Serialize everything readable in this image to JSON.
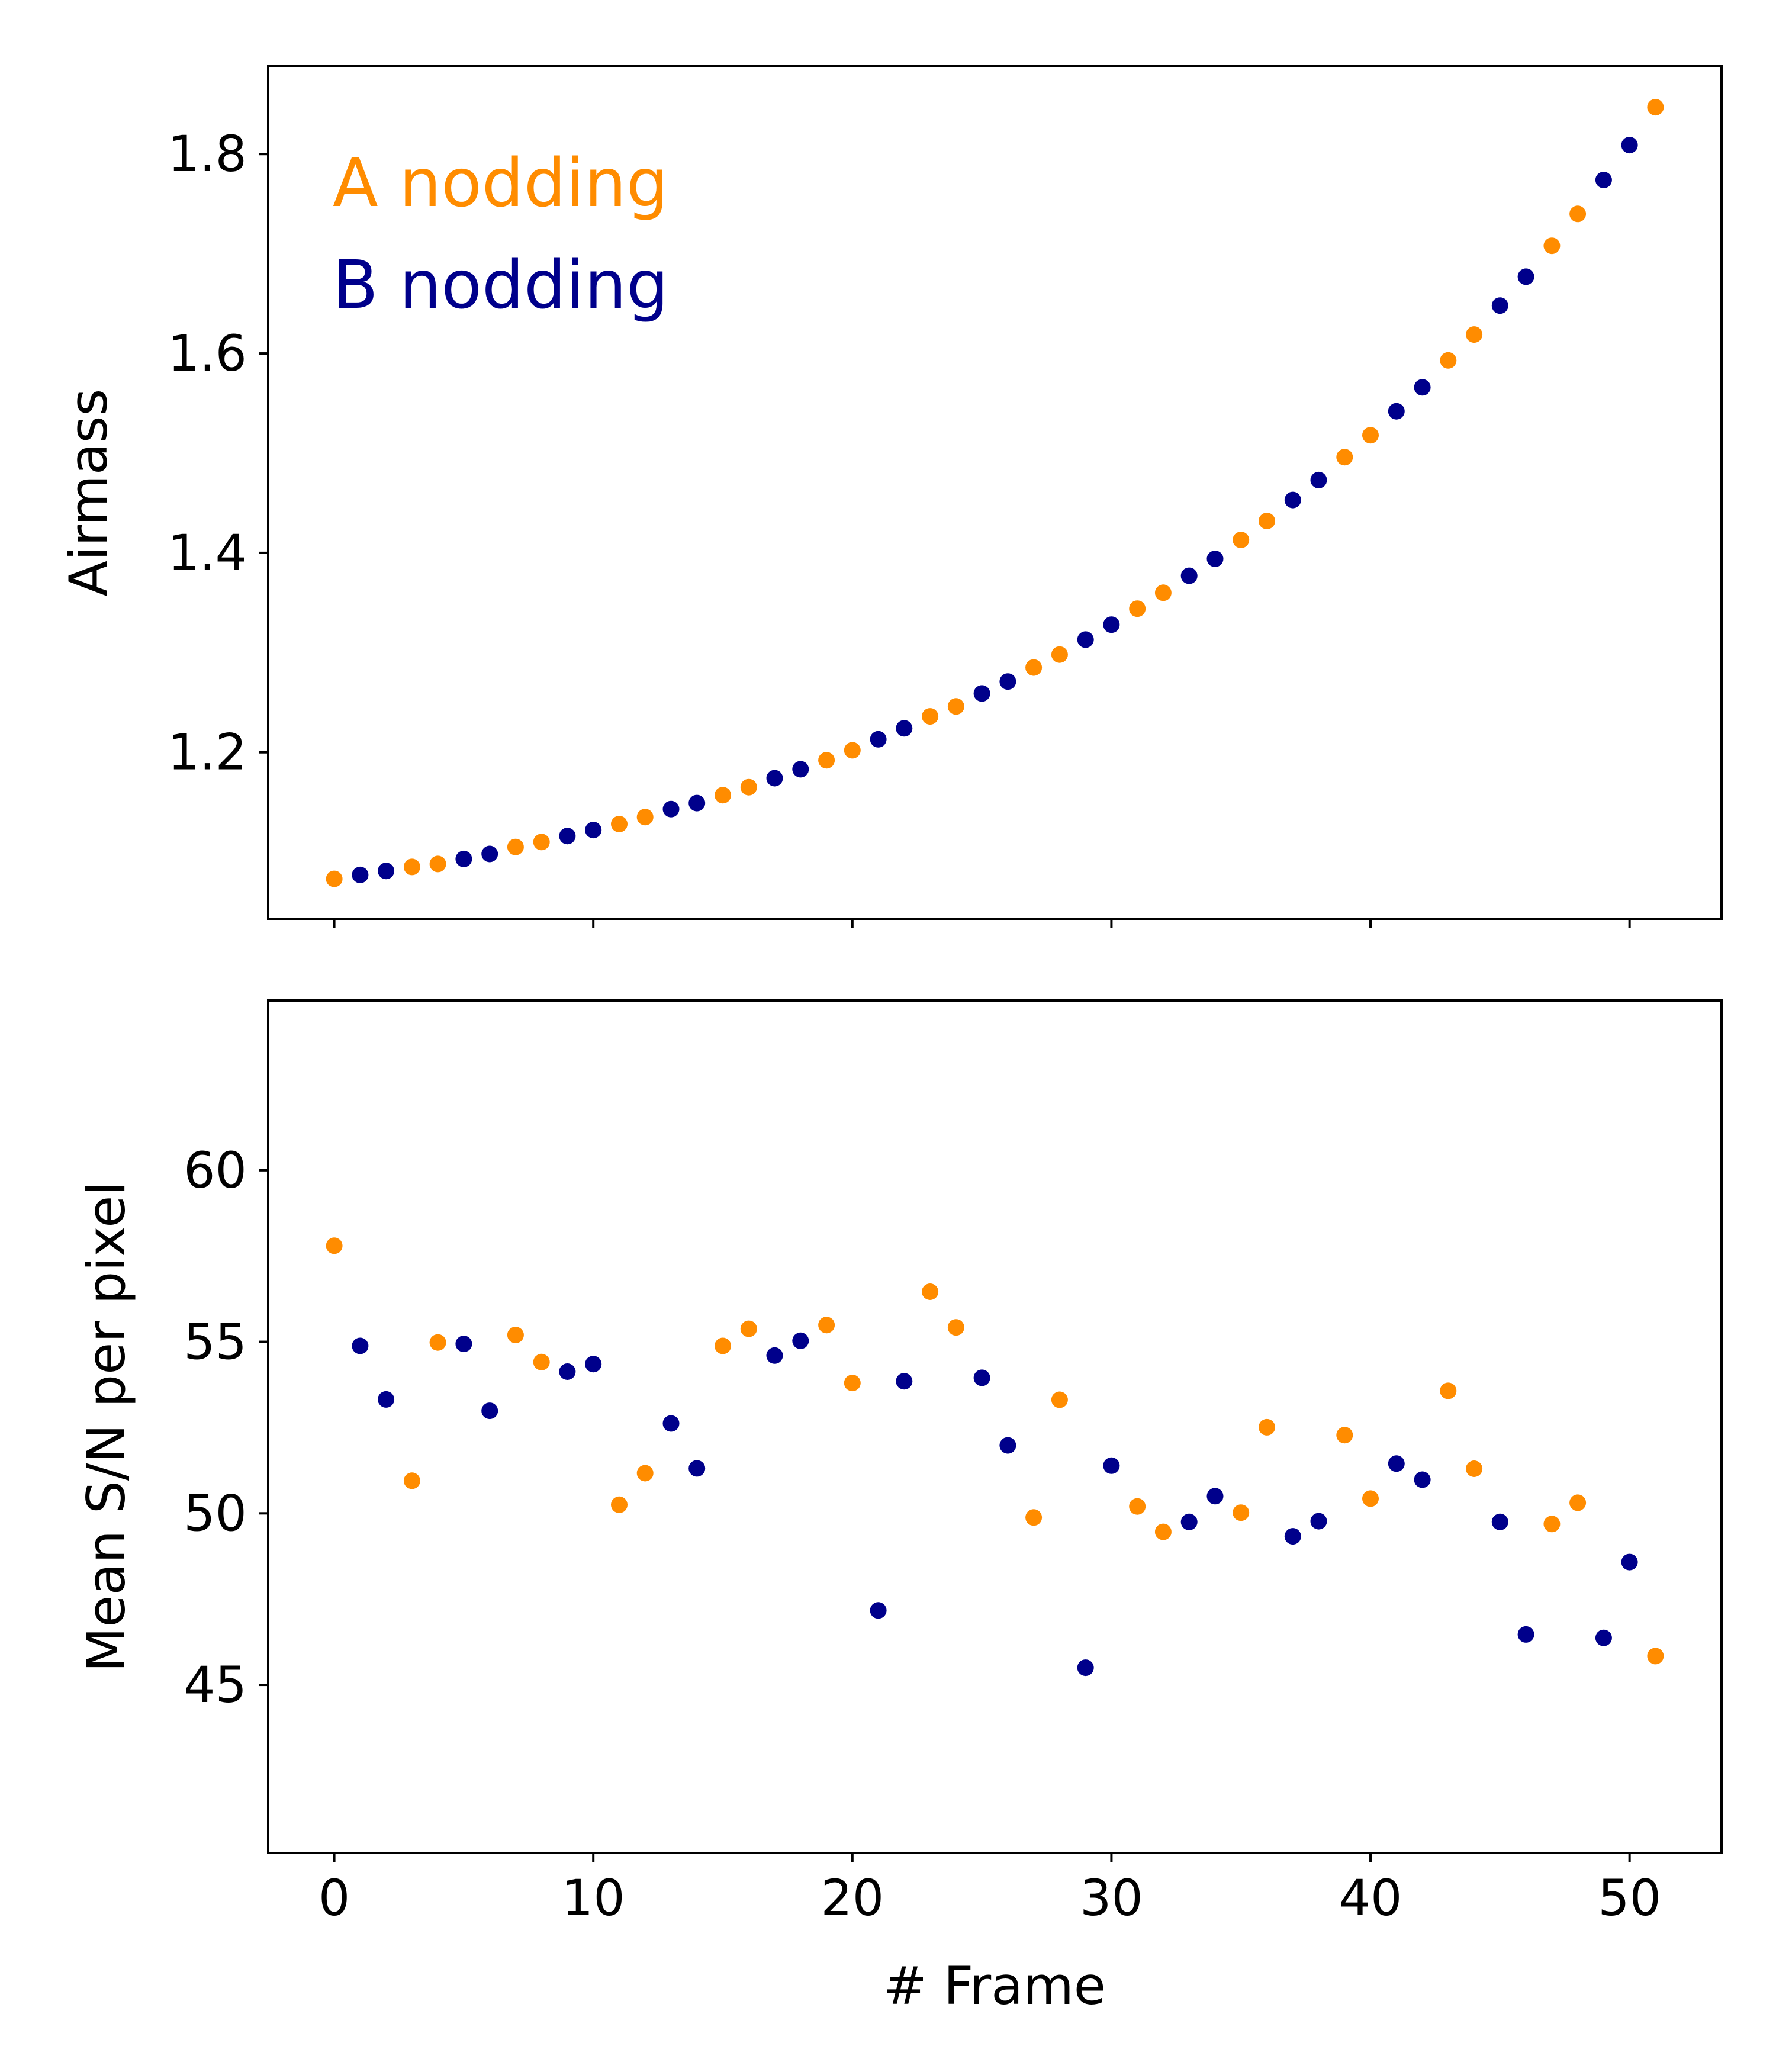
{
  "colors": {
    "A": "#ff8c00",
    "B": "#00008b",
    "axes": "#000000",
    "background": "#ffffff"
  },
  "chart_data": [
    {
      "type": "scatter",
      "title": "",
      "xlabel": "",
      "ylabel": "Airmass",
      "xlim": [
        -2.55,
        53.55
      ],
      "ylim": [
        1.033,
        1.888
      ],
      "xticks": [
        0,
        10,
        20,
        30,
        40,
        50
      ],
      "xticklabels_shown": false,
      "yticks": [
        1.2,
        1.4,
        1.6,
        1.8
      ],
      "ytick_labels": [
        "1.2",
        "1.4",
        "1.6",
        "1.8"
      ],
      "legend": [
        {
          "name": "A nodding",
          "series": "A"
        },
        {
          "name": "B nodding",
          "series": "B"
        }
      ],
      "legend_position": "top-left",
      "series": [
        {
          "name": "A nodding",
          "key": "A",
          "x": [
            0,
            3,
            4,
            7,
            8,
            11,
            12,
            15,
            16,
            19,
            20,
            23,
            24,
            27,
            28,
            31,
            32,
            35,
            36,
            39,
            40,
            43,
            44,
            47,
            48,
            51
          ],
          "y": [
            1.073,
            1.085,
            1.088,
            1.105,
            1.11,
            1.128,
            1.135,
            1.157,
            1.165,
            1.192,
            1.202,
            1.236,
            1.246,
            1.285,
            1.298,
            1.344,
            1.36,
            1.413,
            1.432,
            1.496,
            1.518,
            1.593,
            1.619,
            1.708,
            1.74,
            1.847
          ]
        },
        {
          "name": "B nodding",
          "key": "B",
          "x": [
            1,
            2,
            5,
            6,
            9,
            10,
            13,
            14,
            17,
            18,
            21,
            22,
            25,
            26,
            29,
            30,
            33,
            34,
            37,
            38,
            41,
            42,
            45,
            46,
            49,
            50
          ],
          "y": [
            1.077,
            1.081,
            1.093,
            1.098,
            1.116,
            1.122,
            1.143,
            1.149,
            1.174,
            1.183,
            1.213,
            1.224,
            1.259,
            1.271,
            1.313,
            1.328,
            1.377,
            1.394,
            1.453,
            1.473,
            1.542,
            1.566,
            1.648,
            1.677,
            1.774,
            1.809
          ]
        }
      ]
    },
    {
      "type": "scatter",
      "title": "",
      "xlabel": "# Frame",
      "ylabel": "Mean S/N per pixel",
      "xlim": [
        -2.55,
        53.55
      ],
      "ylim": [
        40.1,
        64.95
      ],
      "xticks": [
        0,
        10,
        20,
        30,
        40,
        50
      ],
      "xtick_labels": [
        "0",
        "10",
        "20",
        "30",
        "40",
        "50"
      ],
      "yticks": [
        45,
        50,
        55,
        60
      ],
      "ytick_labels": [
        "45",
        "50",
        "55",
        "60"
      ],
      "series": [
        {
          "name": "A nodding",
          "key": "A",
          "x": [
            0,
            3,
            4,
            7,
            8,
            11,
            12,
            15,
            16,
            19,
            20,
            23,
            24,
            27,
            28,
            31,
            32,
            35,
            36,
            39,
            40,
            43,
            44,
            47,
            48,
            51
          ],
          "y": [
            57.8,
            50.95,
            54.98,
            55.2,
            54.41,
            50.25,
            51.17,
            54.88,
            55.38,
            55.49,
            53.8,
            56.46,
            55.42,
            49.88,
            53.31,
            50.2,
            49.46,
            50.02,
            52.51,
            52.28,
            50.43,
            53.57,
            51.3,
            49.69,
            50.31,
            45.84
          ]
        },
        {
          "name": "B nodding",
          "key": "B",
          "x": [
            1,
            2,
            5,
            6,
            9,
            10,
            13,
            14,
            17,
            18,
            21,
            22,
            25,
            26,
            29,
            30,
            33,
            34,
            37,
            38,
            41,
            42,
            45,
            46,
            49,
            50
          ],
          "y": [
            54.88,
            53.32,
            54.94,
            52.99,
            54.13,
            54.35,
            52.62,
            51.31,
            54.6,
            55.03,
            47.17,
            53.85,
            53.95,
            51.98,
            45.5,
            51.39,
            49.75,
            50.5,
            49.33,
            49.77,
            51.45,
            50.98,
            49.75,
            46.47,
            46.37,
            48.58
          ]
        }
      ]
    }
  ]
}
